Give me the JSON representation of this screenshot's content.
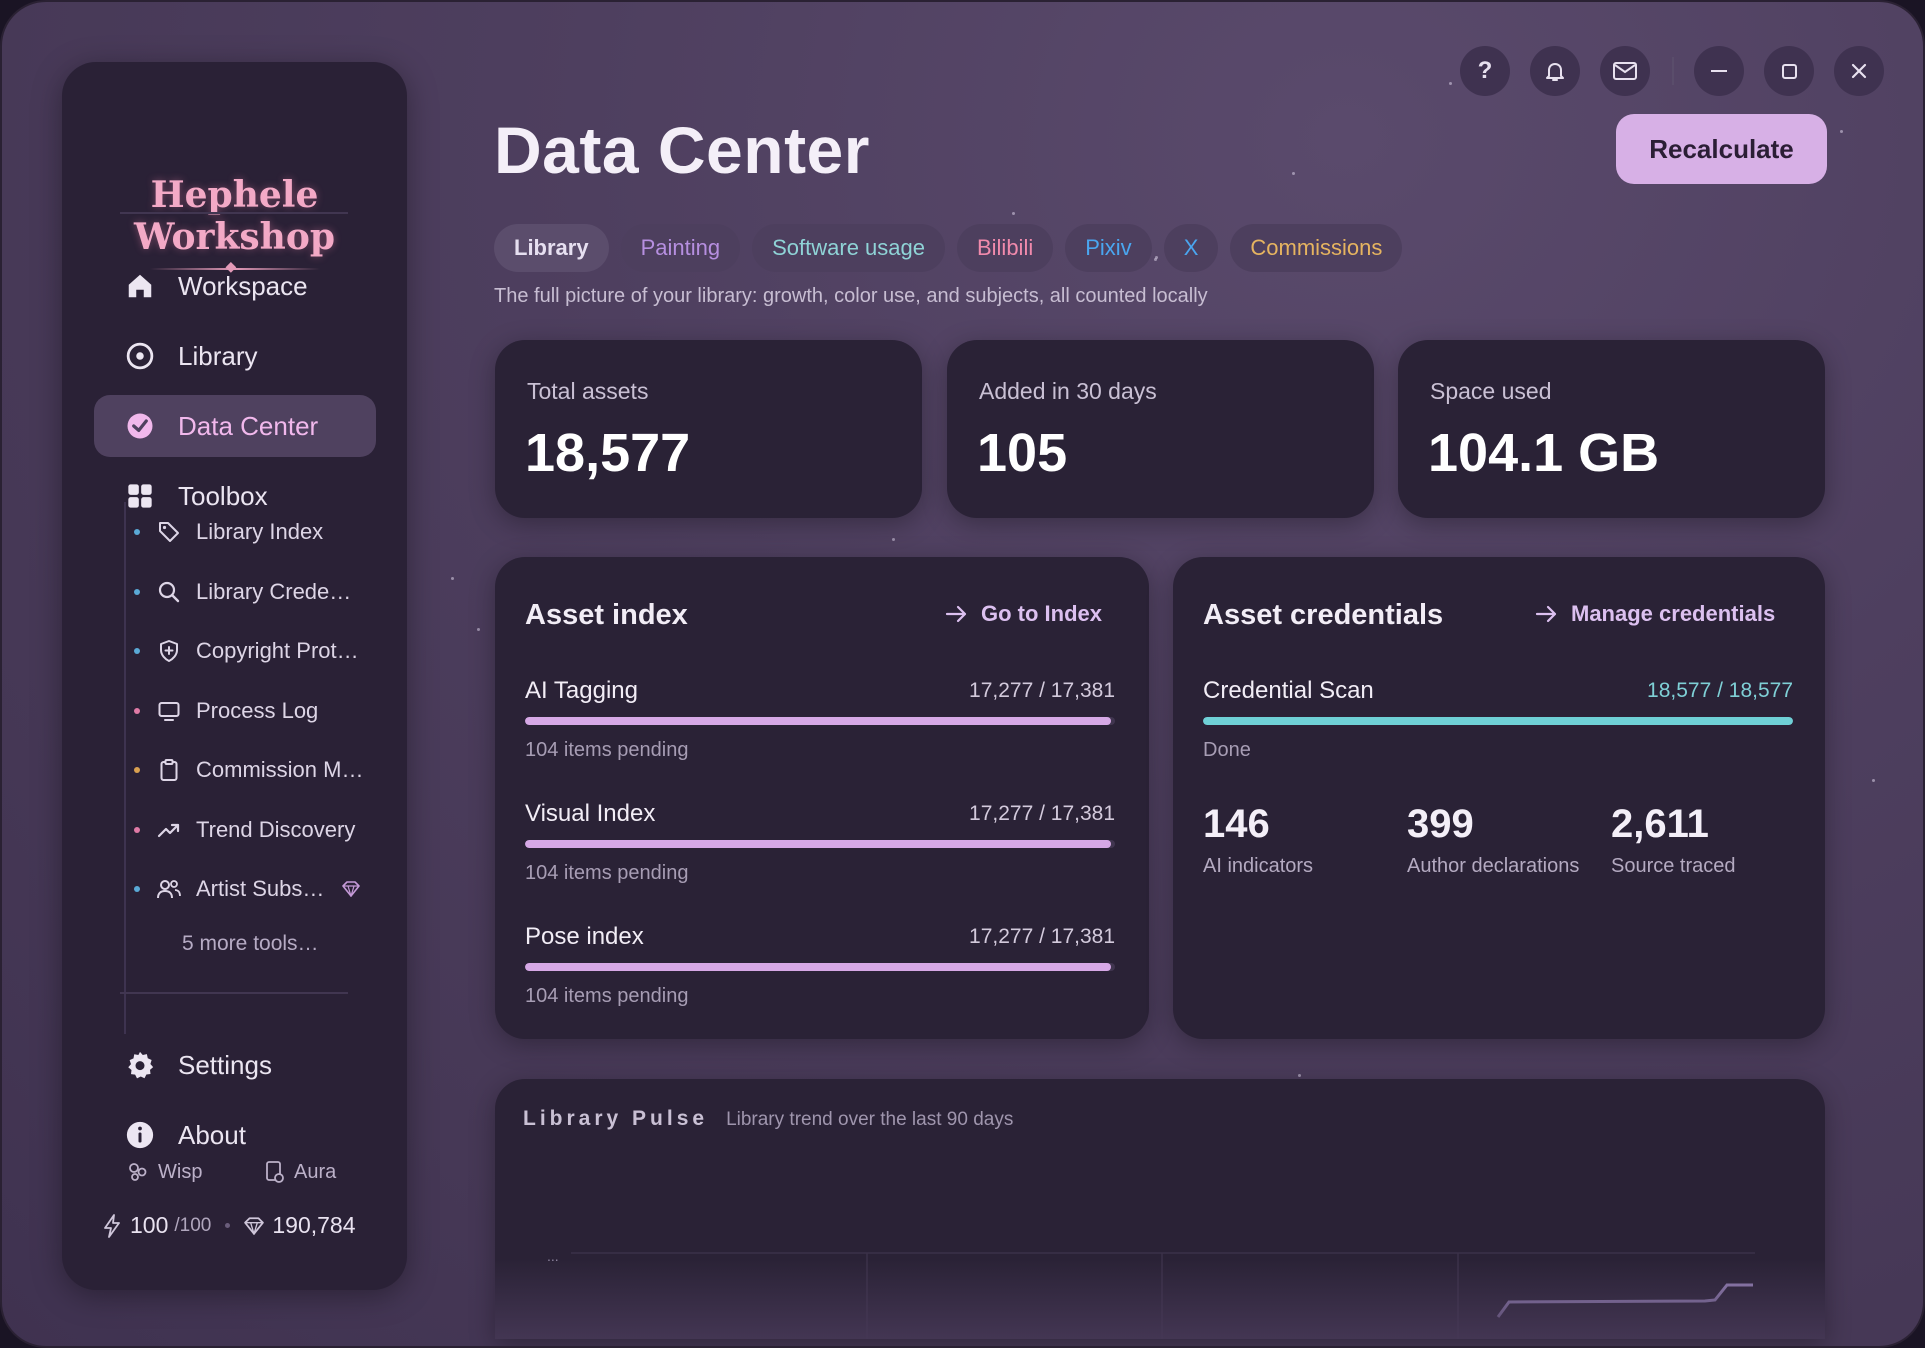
{
  "brand": {
    "name": "Hephele Workshop"
  },
  "sidebar": {
    "nav": [
      {
        "label": "Workspace",
        "icon": "home-icon"
      },
      {
        "label": "Library",
        "icon": "compass-icon"
      },
      {
        "label": "Data Center",
        "icon": "chart-pie-icon",
        "active": true
      },
      {
        "label": "Toolbox",
        "icon": "grid-icon"
      }
    ],
    "tools": [
      {
        "label": "Library Index",
        "icon": "tag-icon",
        "dot": "#5aa9d6"
      },
      {
        "label": "Library Crede…",
        "icon": "search-icon",
        "dot": "#5aa9d6"
      },
      {
        "label": "Copyright Prot…",
        "icon": "shield-plus-icon",
        "dot": "#5aa9d6"
      },
      {
        "label": "Process Log",
        "icon": "monitor-icon",
        "dot": "#e07aa6"
      },
      {
        "label": "Commission M…",
        "icon": "clipboard-icon",
        "dot": "#d9a050"
      },
      {
        "label": "Trend Discovery",
        "icon": "trend-icon",
        "dot": "#e07aa6"
      },
      {
        "label": "Artist Subs…",
        "icon": "users-icon",
        "dot": "#5aa9d6"
      }
    ],
    "more_tools": "5 more tools…",
    "bottom_nav": [
      {
        "label": "Settings",
        "icon": "gear-icon"
      },
      {
        "label": "About",
        "icon": "info-icon"
      }
    ],
    "wisp_label": "Wisp",
    "aura_label": "Aura",
    "energy": "100",
    "energy_max": "/100",
    "gems": "190,784"
  },
  "header": {
    "title": "Data Center",
    "recalc_label": "Recalculate"
  },
  "tabs": [
    {
      "label": "Library",
      "color": "#e6dff0",
      "active": true
    },
    {
      "label": "Painting",
      "color": "#b68fe0"
    },
    {
      "label": "Software usage",
      "color": "#8fd3d6"
    },
    {
      "label": "Bilibili",
      "color": "#f08aac"
    },
    {
      "label": "Pixiv",
      "color": "#4aa6f0"
    },
    {
      "label": "X",
      "color": "#4aa6f0"
    },
    {
      "label": "Commissions",
      "color": "#e6b460"
    }
  ],
  "subtitle": "The full picture of your library: growth, color use, and subjects, all counted locally",
  "stats": [
    {
      "label": "Total assets",
      "value": "18,577"
    },
    {
      "label": "Added in 30 days",
      "value": "105"
    },
    {
      "label": "Space used",
      "value": "104.1 GB"
    }
  ],
  "asset_index": {
    "title": "Asset index",
    "link": "Go to Index",
    "bars": [
      {
        "name": "AI Tagging",
        "count": "17,277 / 17,381",
        "progress": 0.994,
        "note": "104 items pending"
      },
      {
        "name": "Visual Index",
        "count": "17,277 / 17,381",
        "progress": 0.994,
        "note": "104 items pending"
      },
      {
        "name": "Pose index",
        "count": "17,277 / 17,381",
        "progress": 0.994,
        "note": "104 items pending"
      }
    ]
  },
  "credentials": {
    "title": "Asset credentials",
    "link": "Manage credentials",
    "scan": {
      "name": "Credential Scan",
      "count": "18,577 / 18,577",
      "progress": 1.0,
      "note": "Done"
    },
    "metrics": [
      {
        "value": "146",
        "label": "AI indicators"
      },
      {
        "value": "399",
        "label": "Author declarations"
      },
      {
        "value": "2,611",
        "label": "Source traced"
      }
    ]
  },
  "pulse": {
    "title": "Library Pulse",
    "subtitle": "Library trend over the last 90 days",
    "y_tick": "..."
  },
  "colors": {
    "accent": "#d7b0e6",
    "index_bar": "#d6a8e6",
    "credential_bar": "#6fd0d6"
  }
}
